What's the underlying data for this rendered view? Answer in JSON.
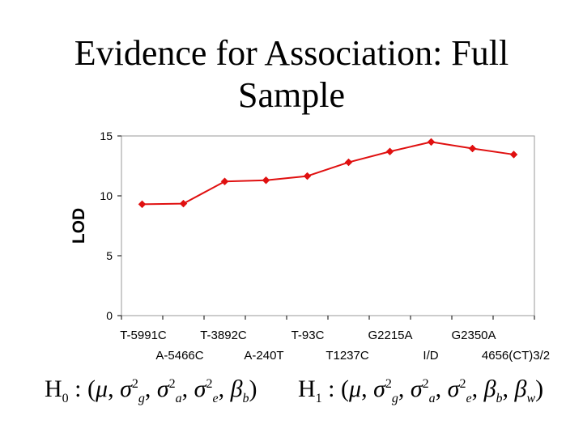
{
  "title": {
    "line1": "Evidence for Association: Full",
    "line2": "Sample"
  },
  "chart_data": {
    "type": "line",
    "ylabel": "LOD",
    "xlabel": "",
    "ylim": [
      0,
      15
    ],
    "yticks": [
      "0",
      "5",
      "10",
      "15"
    ],
    "grid": false,
    "legend": "none",
    "line_color": "#e01010",
    "x_labels_row1": [
      "T-5991C",
      "T-3892C",
      "T-93C",
      "G2215A",
      "G2350A"
    ],
    "x_labels_row2": [
      "A-5466C",
      "A-240T",
      "T1237C",
      "I/D",
      "4656(CT)3/2"
    ],
    "series": [
      {
        "values": [
          9.3,
          9.35,
          11.2,
          11.3,
          11.65,
          12.8,
          13.7,
          14.5,
          13.95,
          13.45
        ]
      }
    ]
  },
  "hypotheses": {
    "h0": "H0 : (μ, σ²g, σ²a, σ²e, βb)",
    "h1": "H1 : (μ, σ²g, σ²a, σ²e, βb, βw)"
  }
}
